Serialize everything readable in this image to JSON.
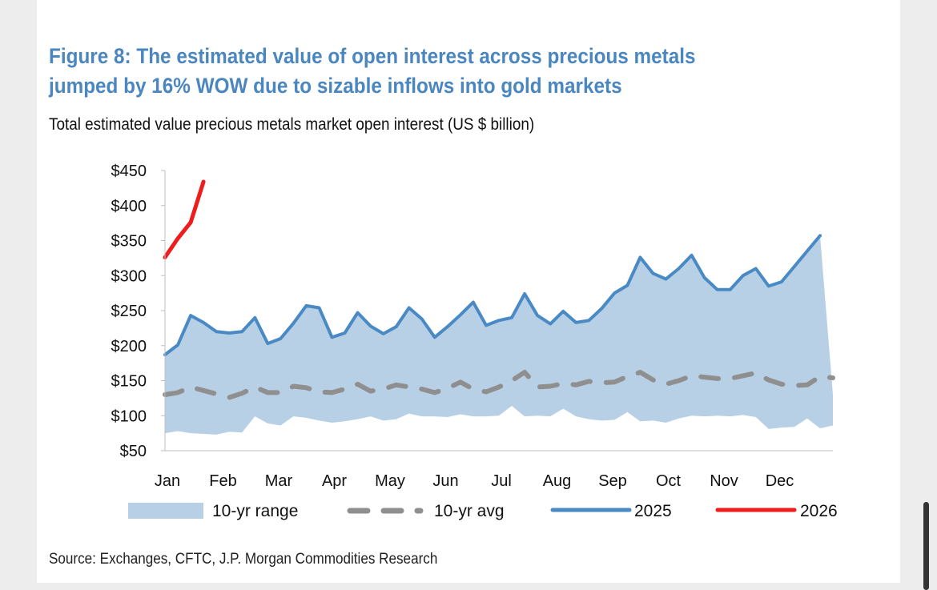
{
  "page": {
    "title": "Figure 8: The estimated value of open interest across precious metals jumped by 16% WOW due to sizable inflows into gold markets",
    "subtitle": "Total estimated value precious metals market open interest (US $ billion)",
    "source": "Source: Exchanges, CFTC, J.P. Morgan Commodities Research"
  },
  "colors": {
    "title": "#4a86c0",
    "range_fill": "#b8d0e6",
    "avg": "#8f8f8f",
    "s2025": "#4a8ac4",
    "s2026": "#ee1c1c"
  },
  "chart_data": {
    "type": "area",
    "title": "Total estimated value precious metals market open interest (US $ billion)",
    "xlabel": "",
    "ylabel": "",
    "ylim": [
      50,
      450
    ],
    "y_ticks": [
      "$450",
      "$400",
      "$350",
      "$300",
      "$250",
      "$200",
      "$150",
      "$100",
      "$50"
    ],
    "y_tick_values": [
      450,
      400,
      350,
      300,
      250,
      200,
      150,
      100,
      50
    ],
    "x_ticks": [
      "Jan",
      "Feb",
      "Mar",
      "Apr",
      "May",
      "Jun",
      "Jul",
      "Aug",
      "Sep",
      "Oct",
      "Nov",
      "Dec"
    ],
    "x_domain": [
      0,
      52
    ],
    "legend": [
      "10-yr range",
      "10-yr avg",
      "2025",
      "2026"
    ],
    "legend_position": "bottom",
    "series": [
      {
        "name": "10-yr range",
        "kind": "band",
        "x": [
          0,
          1,
          2,
          3,
          4,
          5,
          6,
          7,
          8,
          9,
          10,
          11,
          12,
          13,
          14,
          15,
          16,
          17,
          18,
          19,
          20,
          21,
          22,
          23,
          24,
          25,
          26,
          27,
          28,
          29,
          30,
          31,
          32,
          33,
          34,
          35,
          36,
          37,
          38,
          39,
          40,
          41,
          42,
          43,
          44,
          45,
          46,
          47,
          48,
          49,
          50,
          51,
          52
        ],
        "low": [
          75,
          78,
          75,
          74,
          73,
          77,
          76,
          99,
          89,
          86,
          99,
          97,
          93,
          90,
          92,
          95,
          99,
          93,
          95,
          103,
          99,
          99,
          98,
          102,
          99,
          99,
          100,
          114,
          99,
          100,
          99,
          110,
          99,
          95,
          93,
          94,
          105,
          92,
          93,
          90,
          96,
          100,
          99,
          100,
          99,
          101,
          98,
          81,
          83,
          84,
          96,
          82,
          86
        ],
        "high": [
          187,
          201,
          243,
          233,
          220,
          218,
          220,
          240,
          203,
          210,
          232,
          257,
          254,
          212,
          218,
          247,
          228,
          217,
          227,
          254,
          238,
          212,
          227,
          244,
          262,
          229,
          236,
          240,
          274,
          243,
          231,
          249,
          233,
          236,
          253,
          275,
          286,
          326,
          303,
          295,
          310,
          329,
          297,
          280,
          280,
          300,
          310,
          285,
          291,
          313,
          335,
          357,
          130
        ]
      },
      {
        "name": "10-yr avg",
        "kind": "dashed-line",
        "x": [
          0,
          1,
          2,
          3,
          4,
          5,
          6,
          7,
          8,
          9,
          10,
          11,
          12,
          13,
          14,
          15,
          16,
          17,
          18,
          19,
          20,
          21,
          22,
          23,
          24,
          25,
          26,
          27,
          28,
          29,
          30,
          31,
          32,
          33,
          34,
          35,
          36,
          37,
          38,
          39,
          40,
          41,
          42,
          43,
          44,
          45,
          46,
          47,
          48,
          49,
          50,
          51,
          52
        ],
        "values": [
          130,
          133,
          141,
          136,
          131,
          126,
          132,
          141,
          133,
          133,
          142,
          140,
          134,
          133,
          138,
          145,
          135,
          138,
          144,
          141,
          138,
          133,
          139,
          148,
          138,
          134,
          141,
          150,
          162,
          141,
          142,
          146,
          144,
          149,
          147,
          148,
          156,
          162,
          151,
          145,
          150,
          157,
          155,
          153,
          153,
          157,
          161,
          151,
          145,
          143,
          144,
          156,
          154
        ]
      },
      {
        "name": "2025",
        "kind": "line",
        "x": [
          0,
          1,
          2,
          3,
          4,
          5,
          6,
          7,
          8,
          9,
          10,
          11,
          12,
          13,
          14,
          15,
          16,
          17,
          18,
          19,
          20,
          21,
          22,
          23,
          24,
          25,
          26,
          27,
          28,
          29,
          30,
          31,
          32,
          33,
          34,
          35,
          36,
          37,
          38,
          39,
          40,
          41,
          42,
          43,
          44,
          45,
          46,
          47,
          48,
          49,
          50,
          51
        ],
        "values": [
          187,
          201,
          243,
          233,
          220,
          218,
          220,
          240,
          203,
          210,
          232,
          257,
          254,
          212,
          218,
          247,
          228,
          217,
          227,
          254,
          238,
          212,
          227,
          244,
          262,
          229,
          236,
          240,
          274,
          243,
          231,
          249,
          233,
          236,
          253,
          275,
          286,
          326,
          303,
          295,
          310,
          329,
          297,
          280,
          280,
          300,
          310,
          285,
          291,
          313,
          335,
          357
        ]
      },
      {
        "name": "2026",
        "kind": "line",
        "x": [
          0,
          1,
          2,
          3
        ],
        "values": [
          326,
          353,
          376,
          434
        ]
      }
    ]
  }
}
